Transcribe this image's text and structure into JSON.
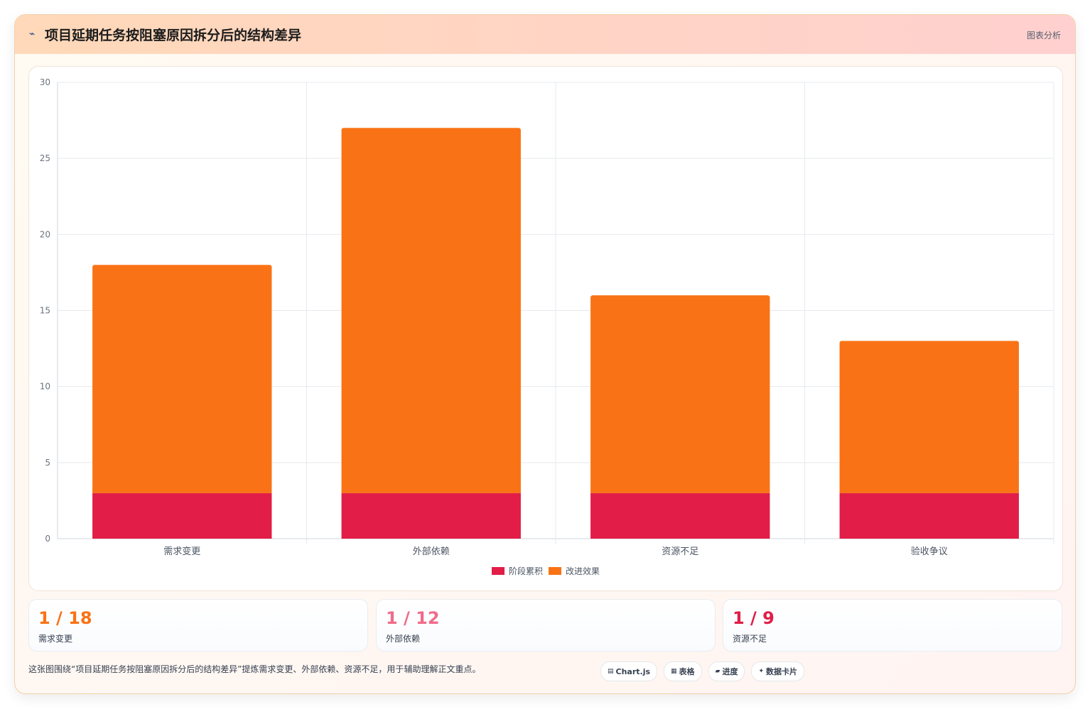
{
  "header": {
    "icon": "chart-line-icon",
    "title": "项目延期任务按阻塞原因拆分后的结构差异",
    "tag": "图表分析"
  },
  "chart_data": {
    "type": "bar",
    "stacked": true,
    "categories": [
      "需求变更",
      "外部依赖",
      "资源不足",
      "验收争议"
    ],
    "series": [
      {
        "name": "阶段累积",
        "color": "#e11d48",
        "values": [
          3,
          3,
          3,
          3
        ]
      },
      {
        "name": "改进效果",
        "color": "#f97316",
        "values": [
          15,
          24,
          13,
          10
        ]
      }
    ],
    "ylim": [
      0,
      30
    ],
    "yticks": [
      0,
      5,
      10,
      15,
      20,
      25,
      30
    ],
    "grid": true,
    "legend": "bottom"
  },
  "stats": [
    {
      "value": "1 / 18",
      "label": "需求变更",
      "color": "#f97316"
    },
    {
      "value": "1 / 12",
      "label": "外部依赖",
      "color": "#f06b8a"
    },
    {
      "value": "1 / 9",
      "label": "资源不足",
      "color": "#e11d48"
    }
  ],
  "footer": {
    "note": "这张图围绕“项目延期任务按阻塞原因拆分后的结构差异”提炼需求变更、外部依赖、资源不足，用于辅助理解正文重点。",
    "chips": [
      {
        "icon": "chart-icon",
        "glyph": "▤",
        "label": "Chart.js"
      },
      {
        "icon": "table-icon",
        "glyph": "▦",
        "label": "表格"
      },
      {
        "icon": "progress-icon",
        "glyph": "▰",
        "label": "进度"
      },
      {
        "icon": "sparkle-icon",
        "glyph": "✦",
        "label": "数据卡片"
      }
    ]
  }
}
